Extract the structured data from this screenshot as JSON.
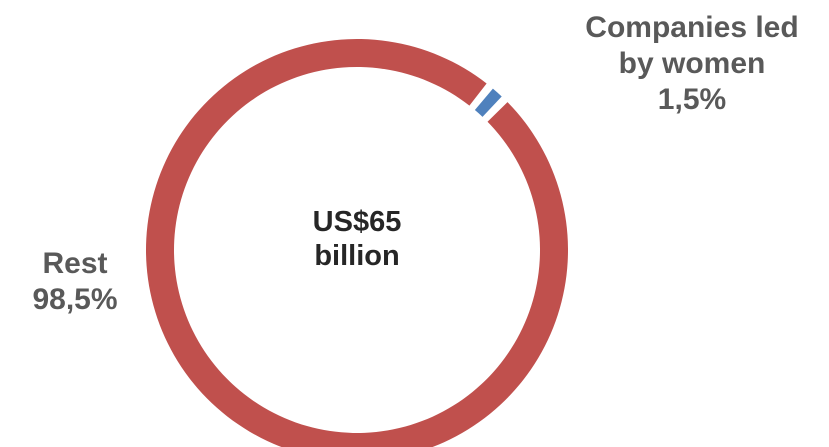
{
  "chart_data": {
    "type": "pie",
    "variant": "donut",
    "center_text": [
      "US$65",
      "billion"
    ],
    "slices": [
      {
        "label_lines": [
          "Companies led",
          "by women"
        ],
        "value": 1.5,
        "value_text": "1,5%",
        "color": "#4F81BD"
      },
      {
        "label_lines": [
          "Rest"
        ],
        "value": 98.5,
        "value_text": "98,5%",
        "color": "#C0504D"
      }
    ],
    "legend": "none"
  }
}
